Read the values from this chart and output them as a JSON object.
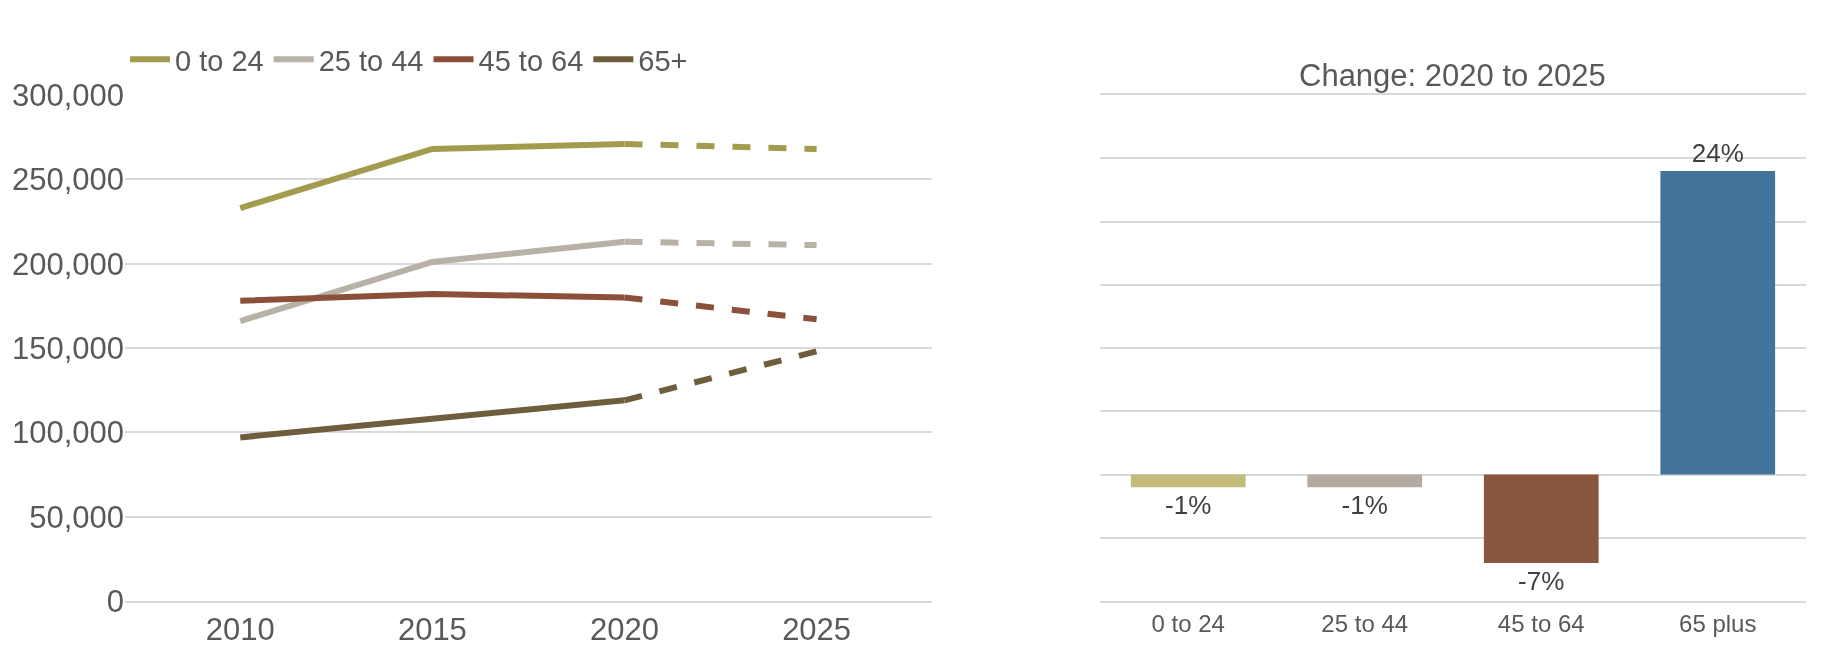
{
  "chart_data": [
    {
      "type": "line",
      "categories": [
        "2010",
        "2015",
        "2020",
        "2025"
      ],
      "series": [
        {
          "name": "0 to 24",
          "color": "#a39c4e",
          "line_style": "solid",
          "values": [
            233000,
            268000,
            271000,
            null
          ]
        },
        {
          "color": "#a39c4e",
          "line_style": "dashed",
          "values": [
            null,
            null,
            271000,
            268000
          ]
        },
        {
          "name": "25 to 44",
          "color": "#b8b2a6",
          "line_style": "solid",
          "values": [
            166000,
            201000,
            213000,
            null
          ]
        },
        {
          "color": "#b8b2a6",
          "line_style": "dashed",
          "values": [
            null,
            null,
            213000,
            211000
          ]
        },
        {
          "name": "45 to 64",
          "color": "#8b4f3a",
          "line_style": "solid",
          "values": [
            178000,
            182000,
            180000,
            null
          ]
        },
        {
          "color": "#8b4f3a",
          "line_style": "dashed",
          "values": [
            null,
            null,
            180000,
            167000
          ]
        },
        {
          "name": "65+",
          "color": "#6e5e3e",
          "line_style": "solid",
          "values": [
            97000,
            108000,
            119000,
            null
          ]
        },
        {
          "color": "#6e5e3e",
          "line_style": "dashed",
          "values": [
            null,
            null,
            119000,
            148000
          ]
        }
      ],
      "ylim": [
        0,
        300000
      ],
      "yticks": [
        {
          "value": 0,
          "label": "0"
        },
        {
          "value": 50000,
          "label": "50,000"
        },
        {
          "value": 100000,
          "label": "100,000"
        },
        {
          "value": 150000,
          "label": "150,000"
        },
        {
          "value": 200000,
          "label": "200,000"
        },
        {
          "value": 250000,
          "label": "250,000"
        },
        {
          "value": 300000,
          "label": "300,000"
        }
      ],
      "grid": "y",
      "legend": "top"
    },
    {
      "type": "bar",
      "title": "Change: 2020 to 2025",
      "categories": [
        "0 to 24",
        "25 to 44",
        "45 to 64",
        "65 plus"
      ],
      "values": [
        -1,
        -1,
        -7,
        24
      ],
      "colors": [
        "#c3bb7a",
        "#b3ab9f",
        "#8a553f",
        "#41739b"
      ],
      "value_labels": [
        "-1%",
        "-1%",
        "-7%",
        "24%"
      ],
      "ylim": [
        -10,
        30
      ],
      "yticks": [
        {
          "value": -10,
          "label": null
        },
        {
          "value": -5,
          "label": null
        },
        {
          "value": 0,
          "label": null
        },
        {
          "value": 5,
          "label": null
        },
        {
          "value": 10,
          "label": null
        },
        {
          "value": 15,
          "label": null
        },
        {
          "value": 20,
          "label": null
        },
        {
          "value": 25,
          "label": null
        },
        {
          "value": 30,
          "label": null
        }
      ],
      "grid": "y",
      "tick_labels": "x"
    }
  ]
}
